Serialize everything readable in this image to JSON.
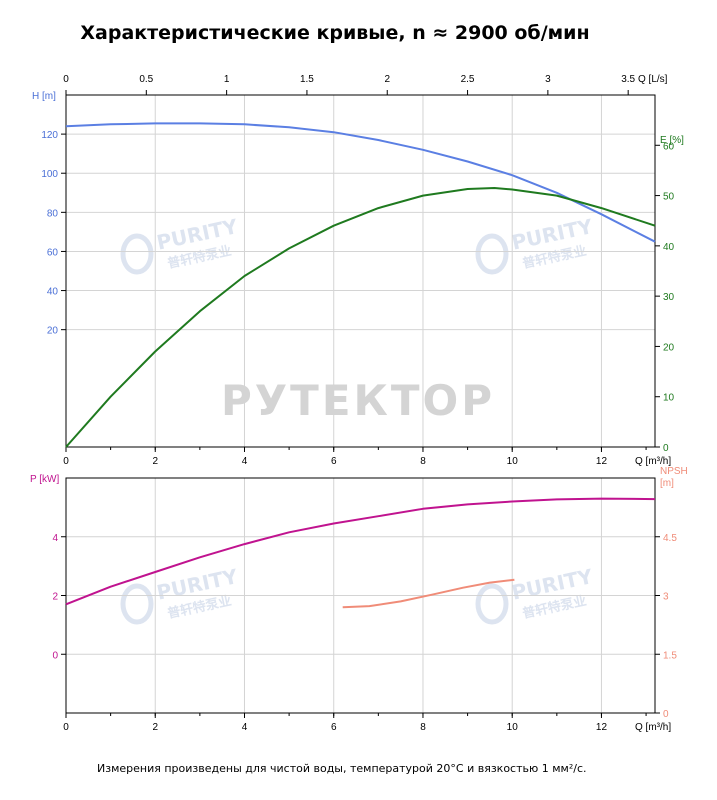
{
  "title": "Характеристические кривые, n ≈ 2900 об/мин",
  "footnote": "Измерения произведены для чистой воды, температурой 20°С и вязкостью 1 мм²/с.",
  "watermarks": {
    "center": "РУТЕКТОР",
    "brand": "PURITY",
    "brand_cn": "普轩特泵业"
  },
  "colors": {
    "head": "#5b7fe3",
    "efficiency": "#1f7a1f",
    "power": "#c0138f",
    "npsh": "#f08c78",
    "axis": "#000000",
    "grid": "#d4d4d4",
    "head_axis_text": "#4a6fd6",
    "eff_axis_text": "#1f7a1f",
    "power_axis_text": "#c0138f",
    "npsh_axis_text": "#f08c78"
  },
  "chart_data": [
    {
      "type": "line",
      "panel": "top",
      "x_top_label": "Q [L/s]",
      "x_top_ticks": [
        "0",
        "0.5",
        "1",
        "1.5",
        "2",
        "2.5",
        "3",
        "3.5"
      ],
      "x_top_lim": [
        0,
        3.667
      ],
      "xlabel": "Q [m³/h]",
      "xlim": [
        0,
        13.2
      ],
      "x_ticks": [
        "0",
        "2",
        "4",
        "6",
        "8",
        "10",
        "12"
      ],
      "y_left_label": "H [m]",
      "y_left_lim": [
        -40,
        140
      ],
      "y_left_ticks": [
        "20",
        "40",
        "60",
        "80",
        "100",
        "120"
      ],
      "y_right_label": "E [%]",
      "y_right_lim": [
        0,
        70
      ],
      "y_right_ticks": [
        "0",
        "10",
        "20",
        "30",
        "40",
        "50",
        "60"
      ],
      "grid": true,
      "series": [
        {
          "name": "H [m]",
          "axis": "left",
          "x": [
            0,
            1,
            2,
            3,
            4,
            5,
            6,
            7,
            8,
            9,
            10,
            11,
            12,
            13.2
          ],
          "y": [
            124,
            125,
            125.5,
            125.5,
            125,
            123.5,
            121,
            117,
            112,
            106,
            99,
            90,
            79,
            65
          ]
        },
        {
          "name": "E [%]",
          "axis": "right",
          "x": [
            0,
            1,
            2,
            3,
            4,
            5,
            6,
            7,
            8,
            9,
            9.6,
            10,
            11,
            12,
            13.2
          ],
          "y": [
            0,
            10,
            19,
            27,
            34,
            39.5,
            44,
            47.5,
            50,
            51.3,
            51.5,
            51.2,
            50,
            47.5,
            44
          ]
        }
      ]
    },
    {
      "type": "line",
      "panel": "bottom",
      "xlabel": "Q [m³/h]",
      "xlim": [
        0,
        13.2
      ],
      "x_ticks": [
        "0",
        "2",
        "4",
        "6",
        "8",
        "10",
        "12"
      ],
      "y_left_label": "P [kW]",
      "y_left_lim": [
        -2,
        6
      ],
      "y_left_ticks": [
        "0",
        "2",
        "4"
      ],
      "y_right_label_line1": "NPSH",
      "y_right_label_line2": "[m]",
      "y_right_lim": [
        0,
        6
      ],
      "y_right_ticks": [
        "0",
        "1.5",
        "3",
        "4.5"
      ],
      "grid": true,
      "series": [
        {
          "name": "P [kW]",
          "axis": "left",
          "x": [
            0,
            1,
            2,
            3,
            4,
            5,
            6,
            7,
            8,
            9,
            10,
            11,
            12,
            13.2
          ],
          "y": [
            1.7,
            2.3,
            2.8,
            3.3,
            3.75,
            4.15,
            4.45,
            4.7,
            4.95,
            5.1,
            5.2,
            5.27,
            5.3,
            5.28
          ]
        },
        {
          "name": "NPSH [m]",
          "axis": "right",
          "x": [
            6.2,
            6.8,
            7.5,
            8.2,
            8.9,
            9.5,
            10.05
          ],
          "y": [
            2.7,
            2.73,
            2.85,
            3.02,
            3.2,
            3.33,
            3.4
          ]
        }
      ]
    }
  ]
}
